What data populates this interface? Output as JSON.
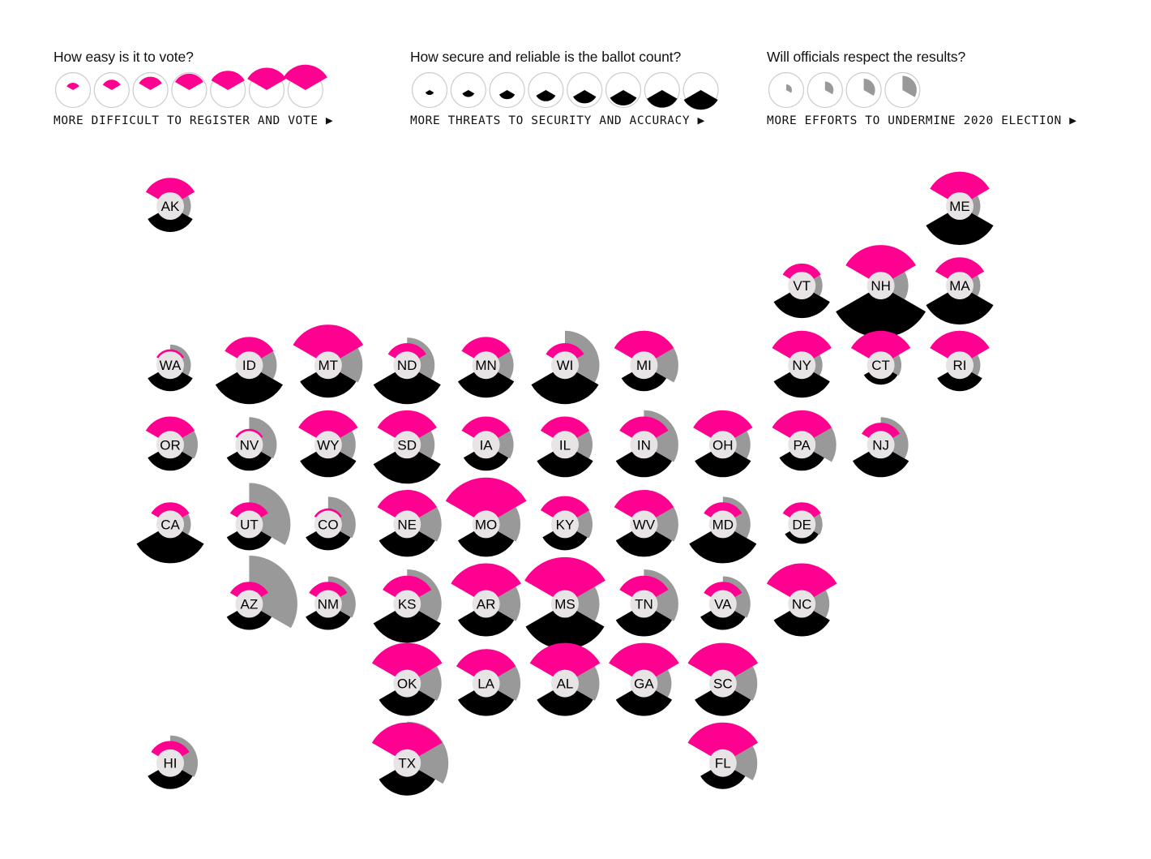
{
  "legend": [
    {
      "question": "How easy is it to vote?",
      "caption": "MORE DIFFICULT TO REGISTER AND VOTE ▶",
      "steps": 7
    },
    {
      "question": "How secure and reliable is the ballot count?",
      "caption": "MORE THREATS TO SECURITY AND ACCURACY ▶",
      "steps": 8
    },
    {
      "question": "Will officials respect the results?",
      "caption": "MORE EFFORTS TO UNDERMINE 2020 ELECTION ▶",
      "steps": 4
    }
  ],
  "colors": {
    "vote": "#ff0090",
    "security": "#000000",
    "respect": "#999999",
    "center": "#e8e4e6",
    "outline": "#cccccc"
  },
  "chart_data": {
    "type": "tile-grid polar-area",
    "series": [
      {
        "name": "How easy is it to vote?",
        "key": "vote",
        "scale": "1-7"
      },
      {
        "name": "How secure and reliable is the ballot count?",
        "key": "security",
        "scale": "1-8"
      },
      {
        "name": "Will officials respect the results?",
        "key": "respect",
        "scale": "1-4"
      }
    ],
    "states": [
      {
        "abbr": "AK",
        "col": 0,
        "row": 0,
        "vote": 3,
        "security": 2,
        "respect": 1
      },
      {
        "abbr": "ME",
        "col": 10,
        "row": 0,
        "vote": 4,
        "security": 4,
        "respect": 1
      },
      {
        "abbr": "VT",
        "col": 8,
        "row": 1,
        "vote": 2,
        "security": 3,
        "respect": 1
      },
      {
        "abbr": "NH",
        "col": 9,
        "row": 1,
        "vote": 5,
        "security": 6,
        "respect": 2
      },
      {
        "abbr": "MA",
        "col": 10,
        "row": 1,
        "vote": 3,
        "security": 4,
        "respect": 1
      },
      {
        "abbr": "WA",
        "col": 0,
        "row": 2,
        "vote": 1,
        "security": 2,
        "respect": 1
      },
      {
        "abbr": "ID",
        "col": 1,
        "row": 2,
        "vote": 3,
        "security": 4,
        "respect": 2
      },
      {
        "abbr": "MT",
        "col": 2,
        "row": 2,
        "vote": 5,
        "security": 3,
        "respect": 3
      },
      {
        "abbr": "ND",
        "col": 3,
        "row": 2,
        "vote": 2,
        "security": 4,
        "respect": 2
      },
      {
        "abbr": "MN",
        "col": 4,
        "row": 2,
        "vote": 3,
        "security": 3,
        "respect": 2
      },
      {
        "abbr": "WI",
        "col": 5,
        "row": 2,
        "vote": 2,
        "security": 4,
        "respect": 3
      },
      {
        "abbr": "MI",
        "col": 6,
        "row": 2,
        "vote": 4,
        "security": 2,
        "respect": 3
      },
      {
        "abbr": "NY",
        "col": 8,
        "row": 2,
        "vote": 4,
        "security": 3,
        "respect": 1
      },
      {
        "abbr": "CT",
        "col": 9,
        "row": 2,
        "vote": 4,
        "security": 1,
        "respect": 1
      },
      {
        "abbr": "RI",
        "col": 10,
        "row": 2,
        "vote": 4,
        "security": 2,
        "respect": 1
      },
      {
        "abbr": "OR",
        "col": 0,
        "row": 3,
        "vote": 3,
        "security": 2,
        "respect": 2
      },
      {
        "abbr": "NV",
        "col": 1,
        "row": 3,
        "vote": 1,
        "security": 2,
        "respect": 2
      },
      {
        "abbr": "WY",
        "col": 2,
        "row": 3,
        "vote": 4,
        "security": 3,
        "respect": 2
      },
      {
        "abbr": "SD",
        "col": 3,
        "row": 3,
        "vote": 4,
        "security": 4,
        "respect": 2
      },
      {
        "abbr": "IA",
        "col": 4,
        "row": 3,
        "vote": 3,
        "security": 2,
        "respect": 2
      },
      {
        "abbr": "IL",
        "col": 5,
        "row": 3,
        "vote": 3,
        "security": 3,
        "respect": 2
      },
      {
        "abbr": "IN",
        "col": 6,
        "row": 3,
        "vote": 3,
        "security": 3,
        "respect": 3
      },
      {
        "abbr": "OH",
        "col": 7,
        "row": 3,
        "vote": 4,
        "security": 3,
        "respect": 2
      },
      {
        "abbr": "PA",
        "col": 8,
        "row": 3,
        "vote": 4,
        "security": 2,
        "respect": 3
      },
      {
        "abbr": "NJ",
        "col": 9,
        "row": 3,
        "vote": 2,
        "security": 3,
        "respect": 2
      },
      {
        "abbr": "CA",
        "col": 0,
        "row": 4,
        "vote": 2,
        "security": 4,
        "respect": 1
      },
      {
        "abbr": "UT",
        "col": 1,
        "row": 4,
        "vote": 2,
        "security": 2,
        "respect": 4
      },
      {
        "abbr": "CO",
        "col": 2,
        "row": 4,
        "vote": 1,
        "security": 2,
        "respect": 2
      },
      {
        "abbr": "NE",
        "col": 3,
        "row": 4,
        "vote": 4,
        "security": 3,
        "respect": 3
      },
      {
        "abbr": "MO",
        "col": 4,
        "row": 4,
        "vote": 6,
        "security": 3,
        "respect": 3
      },
      {
        "abbr": "KY",
        "col": 5,
        "row": 4,
        "vote": 3,
        "security": 2,
        "respect": 2
      },
      {
        "abbr": "WV",
        "col": 6,
        "row": 4,
        "vote": 4,
        "security": 3,
        "respect": 3
      },
      {
        "abbr": "MD",
        "col": 7,
        "row": 4,
        "vote": 2,
        "security": 4,
        "respect": 2
      },
      {
        "abbr": "DE",
        "col": 8,
        "row": 4,
        "vote": 2,
        "security": 1,
        "respect": 1
      },
      {
        "abbr": "AZ",
        "col": 1,
        "row": 5,
        "vote": 2,
        "security": 2,
        "respect": 5
      },
      {
        "abbr": "NM",
        "col": 2,
        "row": 5,
        "vote": 2,
        "security": 2,
        "respect": 2
      },
      {
        "abbr": "KS",
        "col": 3,
        "row": 5,
        "vote": 3,
        "security": 4,
        "respect": 3
      },
      {
        "abbr": "AR",
        "col": 4,
        "row": 5,
        "vote": 5,
        "security": 3,
        "respect": 3
      },
      {
        "abbr": "MS",
        "col": 5,
        "row": 5,
        "vote": 6,
        "security": 5,
        "respect": 3
      },
      {
        "abbr": "TN",
        "col": 6,
        "row": 5,
        "vote": 3,
        "security": 3,
        "respect": 3
      },
      {
        "abbr": "VA",
        "col": 7,
        "row": 5,
        "vote": 2,
        "security": 2,
        "respect": 2
      },
      {
        "abbr": "NC",
        "col": 8,
        "row": 5,
        "vote": 5,
        "security": 3,
        "respect": 2
      },
      {
        "abbr": "OK",
        "col": 3,
        "row": 6,
        "vote": 5,
        "security": 3,
        "respect": 3
      },
      {
        "abbr": "LA",
        "col": 4,
        "row": 6,
        "vote": 4,
        "security": 3,
        "respect": 3
      },
      {
        "abbr": "AL",
        "col": 5,
        "row": 6,
        "vote": 5,
        "security": 3,
        "respect": 3
      },
      {
        "abbr": "GA",
        "col": 6,
        "row": 6,
        "vote": 5,
        "security": 3,
        "respect": 2
      },
      {
        "abbr": "SC",
        "col": 7,
        "row": 6,
        "vote": 5,
        "security": 3,
        "respect": 3
      },
      {
        "abbr": "HI",
        "col": 0,
        "row": 7,
        "vote": 2,
        "security": 2,
        "respect": 2
      },
      {
        "abbr": "TX",
        "col": 3,
        "row": 7,
        "vote": 5,
        "security": 3,
        "respect": 4
      },
      {
        "abbr": "FL",
        "col": 7,
        "row": 7,
        "vote": 5,
        "security": 2,
        "respect": 3
      }
    ]
  }
}
